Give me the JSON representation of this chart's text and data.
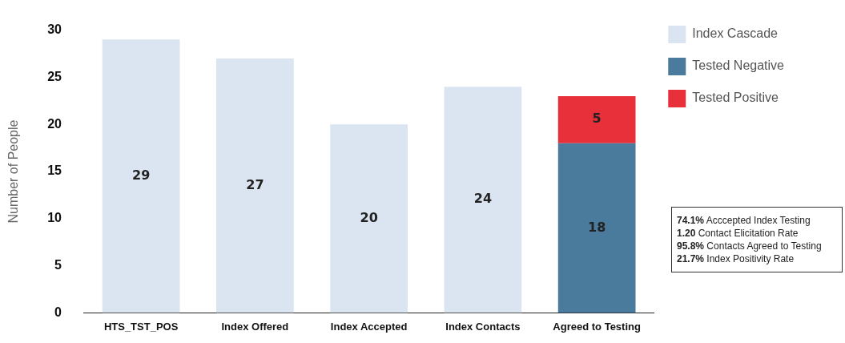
{
  "chart_data": {
    "type": "bar",
    "ylabel": "Number of People",
    "categories": [
      "HTS_TST_POS",
      "Index Offered",
      "Index Accepted",
      "Index Contacts",
      "Agreed to Testing"
    ],
    "series": [
      {
        "name": "Index Cascade",
        "color": "#dae5f1",
        "values": [
          29,
          27,
          20,
          24,
          null
        ]
      },
      {
        "name": "Tested Negative",
        "color": "#4a7a9c",
        "values": [
          null,
          null,
          null,
          null,
          18
        ]
      },
      {
        "name": "Tested Positive",
        "color": "#e8303a",
        "values": [
          null,
          null,
          null,
          null,
          5
        ]
      }
    ],
    "stacked": true,
    "ylim": [
      0,
      30
    ],
    "yticks": [
      0,
      5,
      10,
      15,
      20,
      25,
      30
    ],
    "grid": false,
    "legend": "right",
    "data_labels": true,
    "annotations": [
      "74.1% Acccepted Index Testing",
      "1.20 Contact Elicitation Rate",
      "95.8% Contacts Agreed to Testing",
      "21.7% Index Positivity Rate"
    ]
  }
}
